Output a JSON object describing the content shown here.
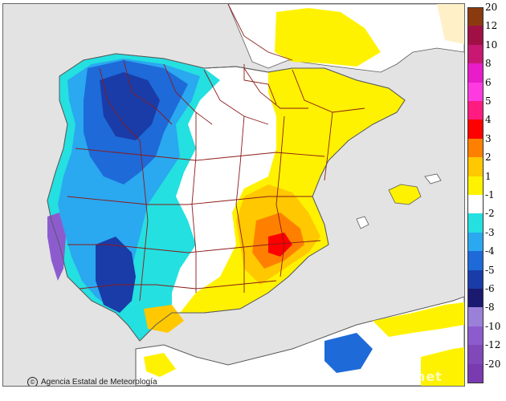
{
  "map": {
    "credit": "Agencia Estatal de Meteorología",
    "watermark": "aemet",
    "colors": {
      "sea": "#e3e3e3",
      "neutral": "#ffffff",
      "border": "#8b1a1a",
      "coast": "#5a5a5a"
    }
  },
  "legend": {
    "items": [
      {
        "label": "20",
        "color": "#8b3a0f"
      },
      {
        "label": "12",
        "color": "#a01045"
      },
      {
        "label": "10",
        "color": "#c81872"
      },
      {
        "label": "8",
        "color": "#e81cc8"
      },
      {
        "label": "6",
        "color": "#ff3ae0"
      },
      {
        "label": "5",
        "color": "#ff1c80"
      },
      {
        "label": "4",
        "color": "#ff0000"
      },
      {
        "label": "3",
        "color": "#ff8000"
      },
      {
        "label": "2",
        "color": "#ffc800"
      },
      {
        "label": "1",
        "color": "#fff200"
      },
      {
        "label": "-1",
        "color": "#ffffff"
      },
      {
        "label": "-2",
        "color": "#24e0e0"
      },
      {
        "label": "-3",
        "color": "#2aa8f0"
      },
      {
        "label": "-4",
        "color": "#1e6ad8"
      },
      {
        "label": "-5",
        "color": "#1a3ca8"
      },
      {
        "label": "-6",
        "color": "#1a1a70"
      },
      {
        "label": "-8",
        "color": "#9a80d8"
      },
      {
        "label": "-10",
        "color": "#8c5ccf"
      },
      {
        "label": "-12",
        "color": "#8048b8"
      },
      {
        "label": "-20",
        "color": "#7a3ab0"
      }
    ]
  }
}
